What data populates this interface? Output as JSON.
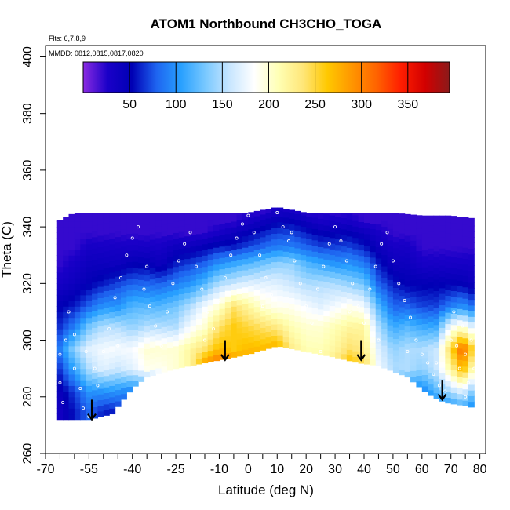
{
  "chart_data": {
    "type": "heatmap",
    "title": "ATOM1 Northbound CH3CHO_TOGA",
    "annotations": {
      "flights": "Flts: 6,7,8,9",
      "dates": "MMDD: 0812,0815,0817,0820"
    },
    "xlabel": "Latitude (deg N)",
    "ylabel": "Theta (C)",
    "xlim": [
      -70,
      82
    ],
    "ylim": [
      260,
      404
    ],
    "x_tick_labels": [
      "-70",
      "-55",
      "-40",
      "-25",
      "-10",
      "0",
      "10",
      "20",
      "30",
      "40",
      "50",
      "60",
      "70",
      "80"
    ],
    "x_ticks_values": [
      -70,
      -55,
      -40,
      -25,
      -10,
      0,
      10,
      20,
      30,
      40,
      50,
      60,
      70,
      80
    ],
    "x_minor_ticks": [
      -65,
      -60,
      -50,
      -45,
      -35,
      -30,
      -20,
      -15,
      -5,
      5,
      15,
      25,
      35,
      45,
      55,
      65,
      75
    ],
    "y_tick_labels": [
      "260",
      "280",
      "300",
      "320",
      "340",
      "360",
      "380",
      "400"
    ],
    "y_ticks_values": [
      260,
      280,
      300,
      320,
      340,
      360,
      380,
      400
    ],
    "colorbar": {
      "range": [
        0,
        395
      ],
      "tick_labels": [
        "50",
        "100",
        "150",
        "200",
        "250",
        "300",
        "350"
      ],
      "tick_values": [
        50,
        100,
        150,
        200,
        250,
        300,
        350
      ],
      "colors": [
        "#8a2be2",
        "#1a00c8",
        "#0000b4",
        "#1e64f0",
        "#28a0ff",
        "#78c8ff",
        "#c8e6ff",
        "#ffffff",
        "#ffffb4",
        "#ffe678",
        "#ffc800",
        "#ff9600",
        "#ff6400",
        "#ff1e00",
        "#d20000",
        "#8b1a1a"
      ]
    },
    "coverage_top": [
      [
        -66,
        342
      ],
      [
        -60,
        345
      ],
      [
        -50,
        345
      ],
      [
        -40,
        345
      ],
      [
        -20,
        345
      ],
      [
        0,
        345
      ],
      [
        10,
        347
      ],
      [
        20,
        345
      ],
      [
        40,
        345
      ],
      [
        50,
        345
      ],
      [
        60,
        344
      ],
      [
        70,
        344
      ],
      [
        78,
        343
      ]
    ],
    "coverage_bottom": [
      [
        -66,
        272
      ],
      [
        -55,
        272
      ],
      [
        -47,
        274
      ],
      [
        -40,
        283
      ],
      [
        -35,
        287
      ],
      [
        -25,
        290
      ],
      [
        -10,
        293
      ],
      [
        0,
        295
      ],
      [
        10,
        298
      ],
      [
        20,
        296
      ],
      [
        30,
        294
      ],
      [
        38,
        292
      ],
      [
        45,
        291
      ],
      [
        55,
        287
      ],
      [
        62,
        281
      ],
      [
        68,
        278
      ],
      [
        74,
        277
      ],
      [
        79,
        276
      ]
    ],
    "columns": [
      {
        "lat": -66,
        "v": [
          30,
          40,
          60,
          80,
          60,
          50,
          30,
          20,
          20,
          20,
          20,
          20
        ]
      },
      {
        "lat": -60,
        "v": [
          60,
          70,
          110,
          140,
          90,
          60,
          40,
          30,
          20,
          20,
          20,
          20
        ]
      },
      {
        "lat": -55,
        "v": [
          80,
          100,
          150,
          170,
          130,
          80,
          50,
          40,
          30,
          20,
          20,
          20
        ]
      },
      {
        "lat": -50,
        "v": [
          60,
          100,
          170,
          180,
          150,
          100,
          60,
          40,
          30,
          20,
          20,
          20
        ]
      },
      {
        "lat": -45,
        "v": [
          60,
          100,
          160,
          180,
          150,
          100,
          70,
          40,
          30,
          20,
          20,
          20
        ]
      },
      {
        "lat": -40,
        "v": [
          60,
          90,
          170,
          180,
          140,
          120,
          80,
          50,
          30,
          20,
          20,
          20
        ]
      },
      {
        "lat": -35,
        "v": [
          60,
          90,
          190,
          200,
          150,
          120,
          80,
          50,
          30,
          20,
          20,
          20
        ]
      },
      {
        "lat": -30,
        "v": [
          60,
          90,
          190,
          200,
          150,
          120,
          80,
          40,
          30,
          20,
          20,
          20
        ]
      },
      {
        "lat": -25,
        "v": [
          60,
          90,
          200,
          200,
          150,
          130,
          90,
          60,
          40,
          20,
          20,
          20
        ]
      },
      {
        "lat": -20,
        "v": [
          60,
          90,
          220,
          220,
          180,
          150,
          100,
          70,
          40,
          20,
          20,
          20
        ]
      },
      {
        "lat": -15,
        "v": [
          60,
          90,
          300,
          240,
          200,
          180,
          120,
          80,
          50,
          20,
          20,
          20
        ]
      },
      {
        "lat": -10,
        "v": [
          60,
          90,
          330,
          270,
          240,
          200,
          150,
          100,
          60,
          30,
          20,
          20
        ]
      },
      {
        "lat": -5,
        "v": [
          60,
          90,
          310,
          260,
          260,
          240,
          160,
          110,
          60,
          40,
          20,
          20
        ]
      },
      {
        "lat": 0,
        "v": [
          60,
          90,
          280,
          270,
          250,
          220,
          170,
          120,
          70,
          50,
          30,
          20
        ]
      },
      {
        "lat": 5,
        "v": [
          60,
          90,
          290,
          270,
          240,
          200,
          170,
          130,
          80,
          60,
          40,
          20
        ]
      },
      {
        "lat": 10,
        "v": [
          60,
          90,
          280,
          280,
          230,
          190,
          170,
          140,
          90,
          70,
          50,
          30
        ]
      },
      {
        "lat": 15,
        "v": [
          60,
          90,
          260,
          230,
          210,
          190,
          160,
          140,
          90,
          70,
          50,
          30
        ]
      },
      {
        "lat": 20,
        "v": [
          60,
          90,
          230,
          210,
          200,
          180,
          150,
          120,
          80,
          60,
          40,
          20
        ]
      },
      {
        "lat": 25,
        "v": [
          60,
          90,
          220,
          210,
          200,
          170,
          150,
          110,
          70,
          50,
          30,
          20
        ]
      },
      {
        "lat": 30,
        "v": [
          60,
          90,
          240,
          220,
          210,
          180,
          150,
          100,
          70,
          50,
          30,
          20
        ]
      },
      {
        "lat": 35,
        "v": [
          60,
          90,
          280,
          240,
          220,
          190,
          140,
          100,
          70,
          50,
          30,
          20
        ]
      },
      {
        "lat": 40,
        "v": [
          60,
          90,
          250,
          230,
          220,
          180,
          130,
          90,
          60,
          40,
          20,
          20
        ]
      },
      {
        "lat": 45,
        "v": [
          60,
          90,
          180,
          170,
          150,
          120,
          80,
          60,
          40,
          30,
          20,
          20
        ]
      },
      {
        "lat": 50,
        "v": [
          60,
          90,
          150,
          140,
          110,
          80,
          60,
          40,
          30,
          20,
          20,
          20
        ]
      },
      {
        "lat": 55,
        "v": [
          60,
          90,
          150,
          150,
          120,
          80,
          50,
          40,
          30,
          20,
          20,
          20
        ]
      },
      {
        "lat": 60,
        "v": [
          60,
          90,
          140,
          150,
          110,
          70,
          50,
          30,
          20,
          20,
          20,
          20
        ]
      },
      {
        "lat": 65,
        "v": [
          80,
          120,
          160,
          160,
          110,
          70,
          50,
          30,
          20,
          20,
          20,
          20
        ]
      },
      {
        "lat": 70,
        "v": [
          80,
          150,
          220,
          250,
          180,
          90,
          50,
          30,
          20,
          20,
          20,
          20
        ]
      },
      {
        "lat": 74,
        "v": [
          100,
          170,
          280,
          320,
          200,
          100,
          50,
          30,
          20,
          20,
          20,
          20
        ]
      },
      {
        "lat": 78,
        "v": [
          80,
          130,
          200,
          240,
          160,
          80,
          40,
          30,
          20,
          20,
          20,
          20
        ]
      }
    ],
    "column_levels": [
      275,
      282,
      290,
      297,
      305,
      312,
      320,
      327,
      333,
      338,
      342,
      346
    ],
    "arrows": [
      {
        "lat": -54,
        "theta": 279
      },
      {
        "lat": -8,
        "theta": 300
      },
      {
        "lat": 39,
        "theta": 300
      },
      {
        "lat": 67,
        "theta": 286
      }
    ],
    "samples": [
      [
        -65,
        295
      ],
      [
        -65,
        285
      ],
      [
        -64,
        278
      ],
      [
        -63,
        300
      ],
      [
        -62,
        310
      ],
      [
        -60,
        290
      ],
      [
        -58,
        283
      ],
      [
        -57,
        276
      ],
      [
        -55,
        273
      ],
      [
        -53,
        290
      ],
      [
        -50,
        296
      ],
      [
        -48,
        304
      ],
      [
        -46,
        315
      ],
      [
        -44,
        322
      ],
      [
        -42,
        330
      ],
      [
        -40,
        336
      ],
      [
        -38,
        340
      ],
      [
        -36,
        318
      ],
      [
        -34,
        312
      ],
      [
        -32,
        305
      ],
      [
        -30,
        298
      ],
      [
        -28,
        310
      ],
      [
        -26,
        320
      ],
      [
        -24,
        328
      ],
      [
        -22,
        334
      ],
      [
        -20,
        338
      ],
      [
        -18,
        326
      ],
      [
        -16,
        318
      ],
      [
        -14,
        310
      ],
      [
        -12,
        304
      ],
      [
        -10,
        314
      ],
      [
        -8,
        322
      ],
      [
        -6,
        330
      ],
      [
        -4,
        336
      ],
      [
        -2,
        341
      ],
      [
        0,
        344
      ],
      [
        2,
        338
      ],
      [
        4,
        330
      ],
      [
        6,
        322
      ],
      [
        8,
        316
      ],
      [
        10,
        345
      ],
      [
        12,
        340
      ],
      [
        14,
        335
      ],
      [
        16,
        328
      ],
      [
        18,
        320
      ],
      [
        20,
        312
      ],
      [
        22,
        306
      ],
      [
        24,
        318
      ],
      [
        26,
        326
      ],
      [
        28,
        334
      ],
      [
        30,
        340
      ],
      [
        32,
        335
      ],
      [
        34,
        328
      ],
      [
        36,
        320
      ],
      [
        38,
        312
      ],
      [
        40,
        306
      ],
      [
        42,
        318
      ],
      [
        44,
        326
      ],
      [
        46,
        334
      ],
      [
        48,
        338
      ],
      [
        50,
        328
      ],
      [
        52,
        320
      ],
      [
        54,
        314
      ],
      [
        56,
        308
      ],
      [
        58,
        300
      ],
      [
        60,
        295
      ],
      [
        62,
        292
      ],
      [
        64,
        288
      ],
      [
        66,
        284
      ],
      [
        68,
        282
      ],
      [
        70,
        300
      ],
      [
        71,
        310
      ],
      [
        72,
        298
      ],
      [
        73,
        290
      ],
      [
        74,
        305
      ],
      [
        75,
        295
      ],
      [
        76,
        285
      ],
      [
        77,
        300
      ],
      [
        78,
        290
      ],
      [
        -60,
        302
      ],
      [
        -56,
        296
      ],
      [
        -52,
        284
      ],
      [
        -45,
        298
      ],
      [
        -35,
        326
      ],
      [
        -15,
        300
      ],
      [
        5,
        312
      ],
      [
        15,
        338
      ],
      [
        25,
        296
      ],
      [
        35,
        310
      ],
      [
        45,
        300
      ],
      [
        55,
        296
      ],
      [
        65,
        292
      ],
      [
        75,
        280
      ]
    ]
  }
}
